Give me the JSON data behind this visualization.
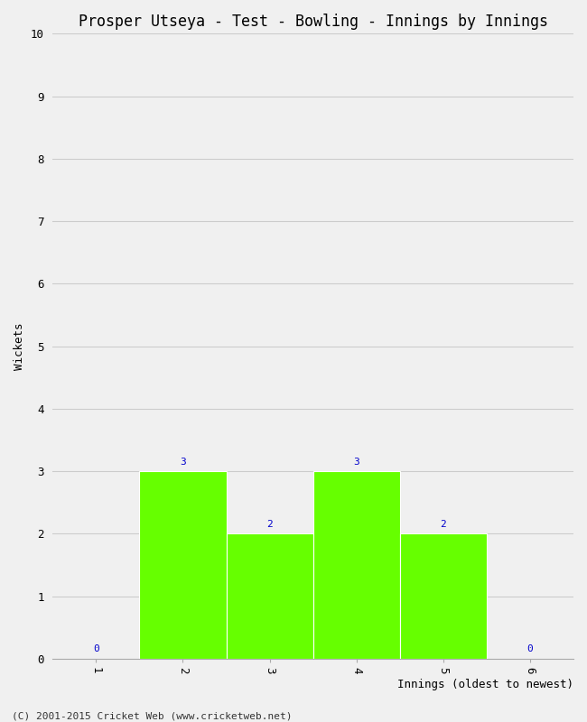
{
  "title": "Prosper Utseya - Test - Bowling - Innings by Innings",
  "xlabel": "Innings (oldest to newest)",
  "ylabel": "Wickets",
  "categories": [
    1,
    2,
    3,
    4,
    5,
    6
  ],
  "values": [
    0,
    3,
    2,
    3,
    2,
    0
  ],
  "bar_color": "#66ff00",
  "bar_edge_color": "#ffffff",
  "label_color": "#0000cc",
  "background_color": "#f0f0f0",
  "ylim": [
    0,
    10
  ],
  "yticks": [
    0,
    1,
    2,
    3,
    4,
    5,
    6,
    7,
    8,
    9,
    10
  ],
  "xticks": [
    1,
    2,
    3,
    4,
    5,
    6
  ],
  "grid_color": "#cccccc",
  "footer": "(C) 2001-2015 Cricket Web (www.cricketweb.net)",
  "title_fontsize": 12,
  "axis_label_fontsize": 9,
  "tick_fontsize": 9,
  "annotation_fontsize": 8,
  "footer_fontsize": 8
}
